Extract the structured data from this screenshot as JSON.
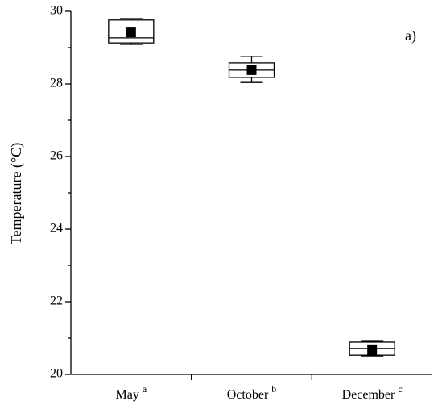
{
  "chart_data": {
    "type": "box",
    "y_label": "Temperature (°C)",
    "annotation": "a)",
    "categories": [
      "May",
      "October",
      "December"
    ],
    "significance": [
      "a",
      "b",
      "c"
    ],
    "boxes": [
      {
        "whisker_low": 29.09,
        "q1": 29.13,
        "median": 29.27,
        "q3": 29.76,
        "whisker_high": 29.8,
        "mean": 29.42
      },
      {
        "whisker_low": 28.04,
        "q1": 28.18,
        "median": 28.38,
        "q3": 28.58,
        "whisker_high": 28.76,
        "mean": 28.38
      },
      {
        "whisker_low": 20.51,
        "q1": 20.53,
        "median": 20.71,
        "q3": 20.89,
        "whisker_high": 20.91,
        "mean": 20.67
      }
    ],
    "color": "#000000",
    "ylim": [
      20,
      30
    ],
    "yticks": [
      20,
      22,
      24,
      26,
      28,
      30
    ],
    "yminorticks": [
      21,
      23,
      25,
      27,
      29
    ]
  }
}
